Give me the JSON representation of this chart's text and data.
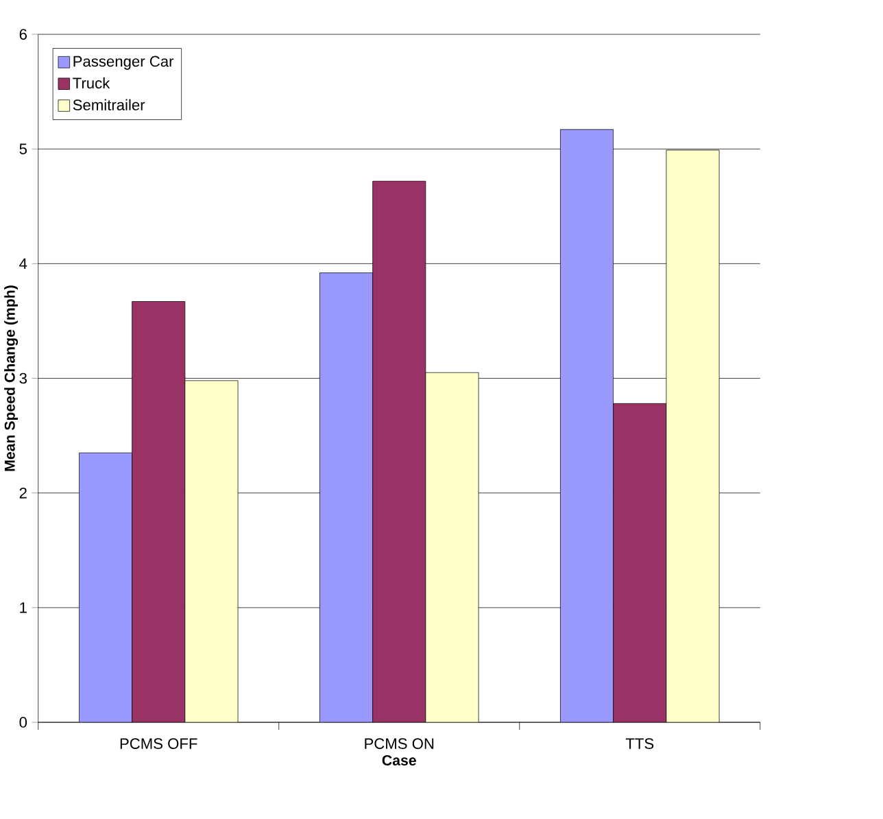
{
  "chart_data": {
    "type": "bar",
    "xlabel": "Case",
    "ylabel": "Mean Speed Change (mph)",
    "categories": [
      "PCMS OFF",
      "PCMS ON",
      "TTS"
    ],
    "series": [
      {
        "name": "Passenger Car",
        "color": "#9999ff",
        "values": [
          2.35,
          3.92,
          5.17
        ]
      },
      {
        "name": "Truck",
        "color": "#993366",
        "values": [
          3.67,
          4.72,
          2.78
        ]
      },
      {
        "name": "Semitrailer",
        "color": "#ffffcc",
        "values": [
          2.98,
          3.05,
          4.99
        ]
      }
    ],
    "ylim": [
      0,
      6
    ],
    "yticks": [
      0,
      1,
      2,
      3,
      4,
      5,
      6
    ],
    "grid": "y",
    "legend": "top left"
  }
}
